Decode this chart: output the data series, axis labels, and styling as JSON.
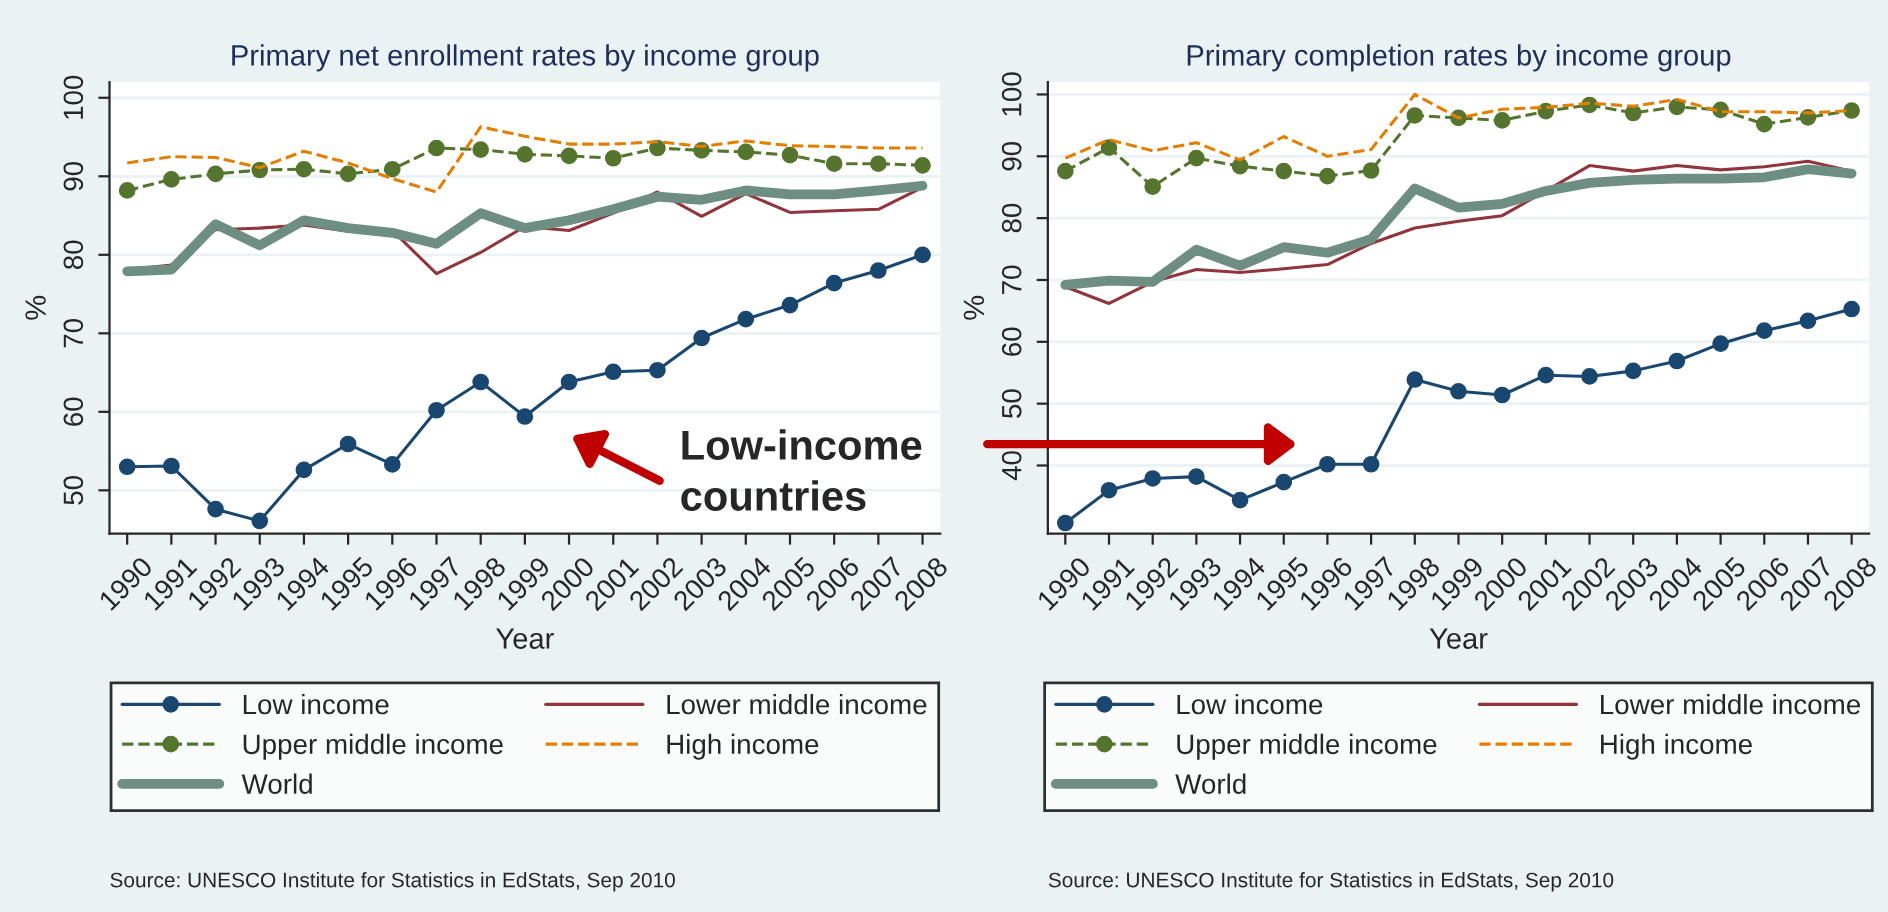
{
  "chart_data": [
    {
      "type": "line",
      "title": "Primary net enrollment rates by income group",
      "xlabel": "Year",
      "ylabel": "%",
      "categories": [
        "1990",
        "1991",
        "1992",
        "1993",
        "1994",
        "1995",
        "1996",
        "1997",
        "1998",
        "1999",
        "2000",
        "2001",
        "2002",
        "2003",
        "2004",
        "2005",
        "2006",
        "2007",
        "2008"
      ],
      "ylim": [
        44.5,
        102
      ],
      "yticks": [
        50,
        60,
        70,
        80,
        90,
        100
      ],
      "grid": "y",
      "legend": "bottom",
      "series": [
        {
          "name": "Low income",
          "color": "#1a476f",
          "marker": "circle",
          "line_style": "solid",
          "values": [
            53.0,
            53.1,
            47.6,
            46.1,
            52.6,
            55.9,
            53.3,
            60.2,
            63.8,
            59.4,
            63.8,
            65.1,
            65.3,
            69.4,
            71.8,
            73.6,
            76.4,
            78.0,
            80.0
          ]
        },
        {
          "name": "Lower middle income",
          "color": "#90353b",
          "marker": "none",
          "line_style": "solid",
          "values": [
            78.1,
            78.7,
            83.2,
            83.4,
            83.8,
            83.0,
            83.1,
            77.6,
            80.3,
            83.6,
            83.1,
            85.3,
            88.0,
            84.9,
            87.8,
            85.4,
            85.6,
            85.8,
            88.6
          ]
        },
        {
          "name": "Upper middle income",
          "color": "#55752f",
          "marker": "circle",
          "line_style": "dashed",
          "values": [
            88.2,
            89.6,
            90.3,
            90.8,
            90.9,
            90.3,
            90.9,
            93.6,
            93.4,
            92.8,
            92.6,
            92.3,
            93.6,
            93.3,
            93.1,
            92.7,
            91.6,
            91.6,
            91.4
          ]
        },
        {
          "name": "High income",
          "color": "#e37e00",
          "marker": "none",
          "line_style": "dashed",
          "values": [
            91.7,
            92.5,
            92.4,
            91.1,
            93.2,
            91.7,
            89.7,
            88.0,
            96.3,
            95.1,
            94.1,
            94.1,
            94.4,
            93.8,
            94.5,
            93.9,
            93.8,
            93.6,
            93.6
          ]
        },
        {
          "name": "World",
          "color": "#6e8e84",
          "marker": "none",
          "line_style": "solid",
          "values": [
            77.9,
            78.1,
            83.9,
            81.2,
            84.4,
            83.4,
            82.8,
            81.4,
            85.3,
            83.4,
            84.4,
            85.8,
            87.4,
            87.0,
            88.2,
            87.7,
            87.7,
            88.2,
            88.8
          ]
        }
      ],
      "annotations": [
        "Source: UNESCO Institute for Statistics in EdStats, Sep 2010",
        "Low-income countries"
      ]
    },
    {
      "type": "line",
      "title": "Primary completion rates by income group",
      "xlabel": "Year",
      "ylabel": "%",
      "categories": [
        "1990",
        "1991",
        "1992",
        "1993",
        "1994",
        "1995",
        "1996",
        "1997",
        "1998",
        "1999",
        "2000",
        "2001",
        "2002",
        "2003",
        "2004",
        "2005",
        "2006",
        "2007",
        "2008"
      ],
      "ylim": [
        29,
        102
      ],
      "yticks": [
        40,
        50,
        60,
        70,
        80,
        90,
        100
      ],
      "grid": "y",
      "legend": "bottom",
      "series": [
        {
          "name": "Low income",
          "color": "#1a476f",
          "marker": "circle",
          "line_style": "solid",
          "values": [
            30.7,
            36.0,
            37.9,
            38.2,
            34.4,
            37.3,
            40.2,
            40.2,
            53.9,
            52.0,
            51.4,
            54.6,
            54.4,
            55.3,
            56.9,
            59.7,
            61.8,
            63.4,
            65.3
          ]
        },
        {
          "name": "Lower middle income",
          "color": "#90353b",
          "marker": "none",
          "line_style": "solid",
          "values": [
            68.9,
            66.2,
            69.7,
            71.7,
            71.2,
            71.8,
            72.5,
            75.9,
            78.4,
            79.5,
            80.4,
            84.4,
            88.5,
            87.6,
            88.5,
            87.8,
            88.3,
            89.2,
            87.6
          ]
        },
        {
          "name": "Upper middle income",
          "color": "#55752f",
          "marker": "circle",
          "line_style": "dashed",
          "values": [
            87.6,
            91.4,
            85.1,
            89.7,
            88.4,
            87.6,
            86.8,
            87.7,
            96.6,
            96.2,
            95.8,
            97.3,
            98.3,
            97.0,
            98.0,
            97.5,
            95.2,
            96.3,
            97.4
          ]
        },
        {
          "name": "High income",
          "color": "#e37e00",
          "marker": "none",
          "line_style": "dashed",
          "values": [
            89.7,
            92.7,
            90.9,
            92.2,
            89.4,
            93.2,
            90.0,
            91.1,
            100.0,
            96.2,
            97.6,
            97.9,
            98.6,
            98.1,
            99.2,
            97.2,
            97.2,
            97.0,
            97.4
          ]
        },
        {
          "name": "World",
          "color": "#6e8e84",
          "marker": "none",
          "line_style": "solid",
          "values": [
            69.2,
            69.9,
            69.7,
            74.9,
            72.3,
            75.3,
            74.4,
            76.6,
            84.8,
            81.7,
            82.3,
            84.4,
            85.7,
            86.2,
            86.4,
            86.4,
            86.6,
            87.9,
            87.2
          ]
        }
      ],
      "annotations": [
        "Source: UNESCO Institute for Statistics in EdStats, Sep 2010"
      ]
    }
  ]
}
